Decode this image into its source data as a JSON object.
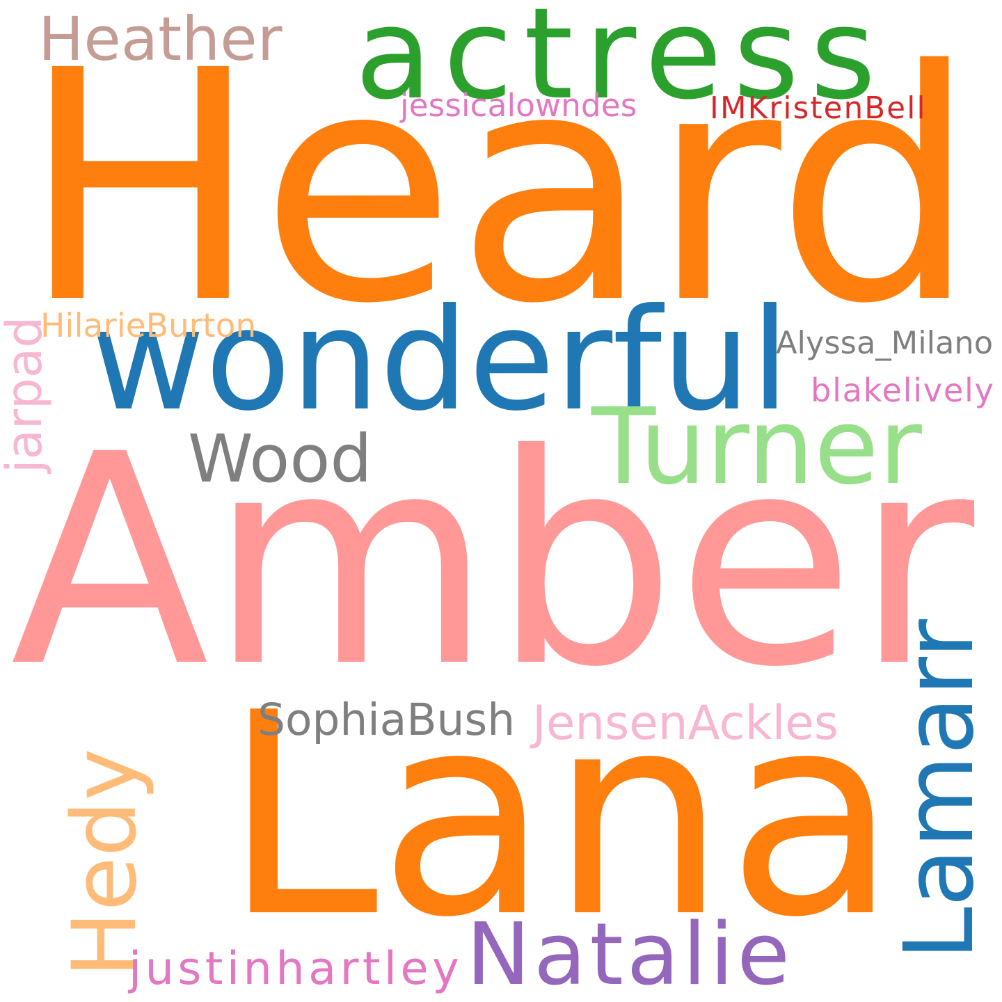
{
  "words": [
    {
      "id": "heard",
      "text": "Heard",
      "color": "#ff7f0e"
    },
    {
      "id": "amber",
      "text": "Amber",
      "color": "#ff9896"
    },
    {
      "id": "lana",
      "text": "Lana",
      "color": "#ff7f0e"
    },
    {
      "id": "actress",
      "text": "actress",
      "color": "#2ca02c"
    },
    {
      "id": "wonderful",
      "text": "wonderful",
      "color": "#1f77b4"
    },
    {
      "id": "turner",
      "text": "Turner",
      "color": "#98df8a"
    },
    {
      "id": "wood",
      "text": "Wood",
      "color": "#7f7f7f"
    },
    {
      "id": "natalie",
      "text": "Natalie",
      "color": "#9467bd"
    },
    {
      "id": "lamarr",
      "text": "Lamarr",
      "color": "#1f77b4"
    },
    {
      "id": "hedy",
      "text": "Hedy",
      "color": "#ffbb78"
    },
    {
      "id": "heather",
      "text": "Heather",
      "color": "#c49c94"
    },
    {
      "id": "sophiabush",
      "text": "SophiaBush",
      "color": "#7f7f7f"
    },
    {
      "id": "jensenackles",
      "text": "JensenAckles",
      "color": "#f7b6d2"
    },
    {
      "id": "justinhartley",
      "text": "justinhartley",
      "color": "#e377c2"
    },
    {
      "id": "jessicalowndes",
      "text": "jessicalowndes",
      "color": "#e377c2"
    },
    {
      "id": "imkristenbell",
      "text": "IMKristenBell",
      "color": "#d62728"
    },
    {
      "id": "hilarieburton",
      "text": "HilarieBurton",
      "color": "#ffbb78"
    },
    {
      "id": "alyssa-milano",
      "text": "Alyssa_Milano",
      "color": "#7f7f7f"
    },
    {
      "id": "blakelively",
      "text": "blakelively",
      "color": "#e377c2"
    },
    {
      "id": "jarpad",
      "text": "jarpad",
      "color": "#f7b6d2"
    }
  ]
}
